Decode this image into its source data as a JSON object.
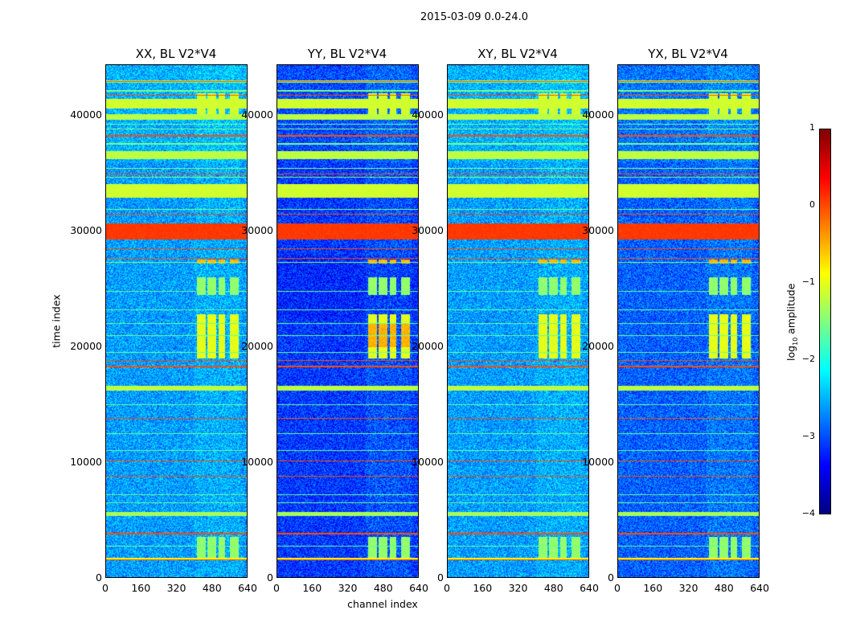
{
  "title": "2015-03-09 0.0-24.0",
  "chart_data": {
    "type": "heatmap",
    "title": "2015-03-09 0.0-24.0",
    "xlabel": "channel index",
    "ylabel": "time index",
    "xlim": [
      0,
      640
    ],
    "ylim": [
      0,
      44400
    ],
    "xticks": [
      "0",
      "160",
      "320",
      "480",
      "640"
    ],
    "yticks": [
      "0",
      "10000",
      "20000",
      "30000",
      "40000"
    ],
    "colorbar": {
      "label_prefix": "log",
      "label_sub": "10",
      "label_suffix": " amplitude",
      "range": [
        -4,
        1
      ],
      "ticks": [
        "1",
        "0",
        "−1",
        "−2",
        "−3",
        "−4"
      ],
      "colormap": "jet"
    },
    "panels": [
      {
        "title": "XX, BL V2*V4",
        "background_log10": -2.6,
        "feature_boost": 0.7
      },
      {
        "title": "YY, BL V2*V4",
        "background_log10": -3.1,
        "feature_boost": 1.1
      },
      {
        "title": "XY, BL V2*V4",
        "background_log10": -2.6,
        "feature_boost": 0.7
      },
      {
        "title": "YX, BL V2*V4",
        "background_log10": -2.9,
        "feature_boost": 0.9
      }
    ],
    "rfi_channel_ranges": [
      [
        410,
        450
      ],
      [
        460,
        500
      ],
      [
        510,
        540
      ],
      [
        560,
        600
      ]
    ],
    "bands": [
      {
        "t": [
          29300,
          30700
        ],
        "v": 0.1
      },
      {
        "t": [
          32900,
          34100
        ],
        "v": -1.1
      },
      {
        "t": [
          36300,
          37000
        ],
        "v": -1.2
      },
      {
        "t": [
          39700,
          40200
        ],
        "v": -1.2
      },
      {
        "t": [
          40700,
          41500
        ],
        "v": -1.1
      },
      {
        "t": [
          16200,
          16600
        ],
        "v": -1.2
      },
      {
        "t": [
          5300,
          5700
        ],
        "v": -1.3
      },
      {
        "t": [
          1500,
          1700
        ],
        "v": -0.9
      },
      {
        "t": [
          42900,
          43100
        ],
        "v": -1.4
      }
    ],
    "lines": [
      {
        "t": 1550,
        "v": 0.0
      },
      {
        "t": 3800,
        "v": 0.0
      },
      {
        "t": 8800,
        "v": 0.0
      },
      {
        "t": 10100,
        "v": 0.0
      },
      {
        "t": 13800,
        "v": 0.0
      },
      {
        "t": 18300,
        "v": 0.0
      },
      {
        "t": 18800,
        "v": 0.0
      },
      {
        "t": 27700,
        "v": 0.0
      },
      {
        "t": 28500,
        "v": 0.0
      },
      {
        "t": 31500,
        "v": 0.0
      },
      {
        "t": 35000,
        "v": 0.0
      },
      {
        "t": 38300,
        "v": 0.0
      },
      {
        "t": 41800,
        "v": 0.0
      },
      {
        "t": 43000,
        "v": 0.0
      },
      {
        "t": 2700,
        "v": -1.6
      },
      {
        "t": 6500,
        "v": -1.6
      },
      {
        "t": 7200,
        "v": -1.6
      },
      {
        "t": 11000,
        "v": -1.6
      },
      {
        "t": 12500,
        "v": -1.6
      },
      {
        "t": 15000,
        "v": -1.6
      },
      {
        "t": 19500,
        "v": -1.6
      },
      {
        "t": 21000,
        "v": -1.6
      },
      {
        "t": 22000,
        "v": -1.6
      },
      {
        "t": 23200,
        "v": -1.6
      },
      {
        "t": 24800,
        "v": -1.6
      },
      {
        "t": 27300,
        "v": -1.5
      },
      {
        "t": 31900,
        "v": -1.5
      },
      {
        "t": 34700,
        "v": -1.4
      },
      {
        "t": 35500,
        "v": -1.4
      },
      {
        "t": 37600,
        "v": -1.5
      },
      {
        "t": 38900,
        "v": -1.5
      },
      {
        "t": 39300,
        "v": -1.5
      },
      {
        "t": 42200,
        "v": -1.5
      }
    ],
    "rfi_time_ranges": [
      [
        19000,
        22800,
        -1.0
      ],
      [
        24500,
        26000,
        -1.4
      ],
      [
        1500,
        3500,
        -1.4
      ],
      [
        27200,
        27600,
        -0.5
      ],
      [
        40000,
        42000,
        -1.1
      ]
    ]
  }
}
